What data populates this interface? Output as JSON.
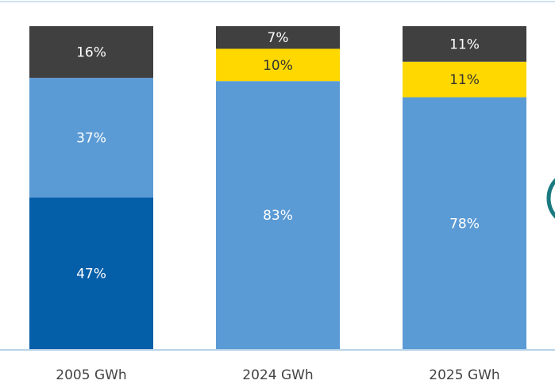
{
  "chart_data": {
    "type": "stacked-bar",
    "categories": [
      "2005 GWh",
      "2024 GWh",
      "2025 GWh"
    ],
    "series": [
      {
        "color": "#055ea8",
        "values": [
          47,
          null,
          null
        ],
        "value_labels": [
          "47%",
          null,
          null
        ]
      },
      {
        "color": "#5b9bd5",
        "values": [
          37,
          83,
          78
        ],
        "value_labels": [
          "37%",
          "83%",
          "78%"
        ]
      },
      {
        "color": "#ffd800",
        "values": [
          null,
          10,
          11
        ],
        "value_labels": [
          null,
          "10%",
          "11%"
        ]
      },
      {
        "color": "#404040",
        "values": [
          16,
          7,
          11
        ],
        "value_labels": [
          "16%",
          "7%",
          "11%"
        ]
      }
    ],
    "ylim": [
      0,
      100
    ]
  }
}
